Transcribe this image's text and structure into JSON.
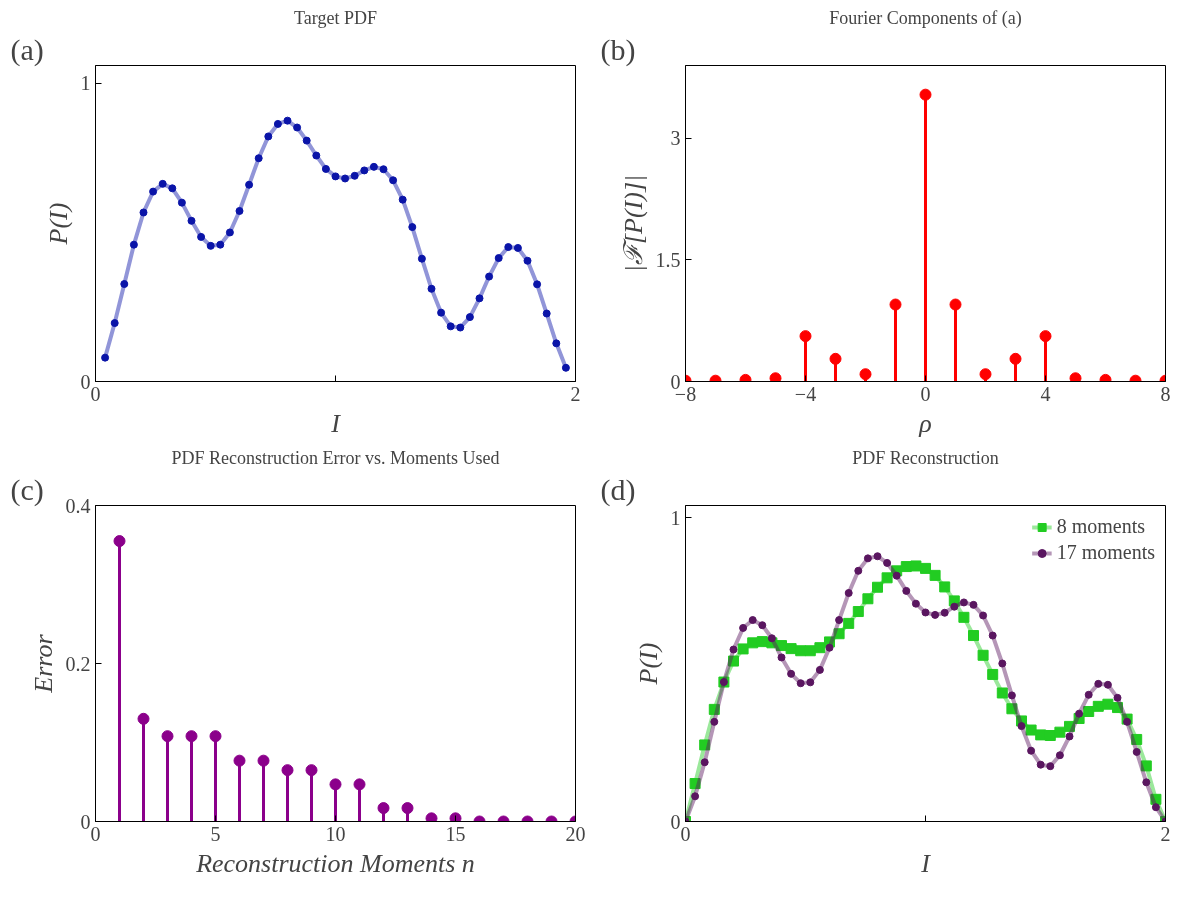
{
  "chart_data": [
    {
      "type": "line",
      "title": "Target PDF",
      "xlabel": "I",
      "ylabel": "P(I)",
      "annotations": [
        "(a)"
      ],
      "marker": "circle",
      "xlim": [
        0,
        2
      ],
      "ylim": [
        0,
        1.06
      ],
      "xticks": [
        0,
        {
          "value": 1,
          "label": null
        },
        2
      ],
      "yticks": [
        0,
        1
      ],
      "grid": false,
      "legend": false,
      "x": [
        0.04,
        0.08,
        0.12,
        0.16,
        0.2,
        0.24,
        0.28,
        0.32,
        0.36,
        0.4,
        0.44,
        0.48,
        0.52,
        0.56,
        0.6,
        0.64,
        0.68,
        0.72,
        0.76,
        0.8,
        0.84,
        0.88,
        0.92,
        0.96,
        1.0,
        1.04,
        1.08,
        1.12,
        1.16,
        1.2,
        1.24,
        1.28,
        1.32,
        1.36,
        1.4,
        1.44,
        1.48,
        1.52,
        1.56,
        1.6,
        1.64,
        1.68,
        1.72,
        1.76,
        1.8,
        1.84,
        1.88,
        1.92,
        1.96
      ],
      "series": [
        {
          "color": "#0a14a8",
          "values": [
            0.08,
            0.196,
            0.327,
            0.459,
            0.567,
            0.637,
            0.663,
            0.648,
            0.6,
            0.539,
            0.485,
            0.455,
            0.459,
            0.5,
            0.572,
            0.66,
            0.749,
            0.822,
            0.864,
            0.875,
            0.852,
            0.808,
            0.758,
            0.713,
            0.688,
            0.681,
            0.69,
            0.708,
            0.72,
            0.712,
            0.675,
            0.61,
            0.518,
            0.412,
            0.311,
            0.231,
            0.185,
            0.181,
            0.216,
            0.279,
            0.352,
            0.414,
            0.451,
            0.448,
            0.405,
            0.326,
            0.228,
            0.128,
            0.046
          ]
        }
      ]
    },
    {
      "type": "lollipop",
      "title": "Fourier Components of (a)",
      "xlabel": "ρ",
      "ylabel": "|ℱ[P(I)]|",
      "annotations": [
        "(b)"
      ],
      "xlim": [
        -8,
        8
      ],
      "ylim": [
        0,
        3.9
      ],
      "xticks": [
        -8,
        -4,
        0,
        4,
        8
      ],
      "yticks": [
        0,
        1.5,
        3
      ],
      "grid": false,
      "legend": false,
      "x": [
        -8,
        -7,
        -6,
        -5,
        -4,
        -3,
        -2,
        -1,
        0,
        1,
        2,
        3,
        4,
        5,
        6,
        7,
        8
      ],
      "series": [
        {
          "color": "#ff0000",
          "values": [
            0.01,
            0.01,
            0.02,
            0.04,
            0.56,
            0.28,
            0.09,
            0.95,
            3.54,
            0.95,
            0.09,
            0.28,
            0.56,
            0.04,
            0.02,
            0.01,
            0.01
          ]
        }
      ]
    },
    {
      "type": "lollipop",
      "title": "PDF Reconstruction Error vs. Moments Used",
      "xlabel": "Reconstruction Moments n",
      "ylabel": "Error",
      "annotations": [
        "(c)"
      ],
      "xlim": [
        0,
        20
      ],
      "ylim": [
        0,
        0.4
      ],
      "xticks": [
        0,
        5,
        10,
        15,
        20
      ],
      "yticks": [
        0,
        0.2,
        0.4
      ],
      "grid": false,
      "legend": false,
      "x": [
        1,
        2,
        3,
        4,
        5,
        6,
        7,
        8,
        9,
        10,
        11,
        12,
        13,
        14,
        15,
        16,
        17,
        18,
        19,
        20
      ],
      "series": [
        {
          "color": "#8b008b",
          "values": [
            0.355,
            0.13,
            0.108,
            0.108,
            0.108,
            0.077,
            0.077,
            0.065,
            0.065,
            0.047,
            0.047,
            0.017,
            0.017,
            0.004,
            0.004,
            0,
            0,
            0,
            0,
            0
          ]
        }
      ]
    },
    {
      "type": "line",
      "title": "PDF Reconstruction",
      "xlabel": "I",
      "ylabel": "P(I)",
      "annotations": [
        "(d)"
      ],
      "xlim": [
        0,
        2
      ],
      "ylim": [
        0,
        1.04
      ],
      "xticks": [
        0,
        {
          "value": 1,
          "label": null
        },
        2
      ],
      "yticks": [
        0,
        1
      ],
      "grid": false,
      "legend": "top right",
      "x": [
        0,
        0.04,
        0.08,
        0.12,
        0.16,
        0.2,
        0.24,
        0.28,
        0.32,
        0.36,
        0.4,
        0.44,
        0.48,
        0.52,
        0.56,
        0.6,
        0.64,
        0.68,
        0.72,
        0.76,
        0.8,
        0.84,
        0.88,
        0.92,
        0.96,
        1.0,
        1.04,
        1.08,
        1.12,
        1.16,
        1.2,
        1.24,
        1.28,
        1.32,
        1.36,
        1.4,
        1.44,
        1.48,
        1.52,
        1.56,
        1.6,
        1.64,
        1.68,
        1.72,
        1.76,
        1.8,
        1.84,
        1.88,
        1.92,
        1.96,
        2.0
      ],
      "series": [
        {
          "name": "8 moments",
          "color": "#22cc22",
          "marker": "square",
          "values": [
            0,
            0.125,
            0.252,
            0.369,
            0.459,
            0.528,
            0.568,
            0.588,
            0.592,
            0.588,
            0.579,
            0.569,
            0.562,
            0.562,
            0.572,
            0.591,
            0.618,
            0.652,
            0.691,
            0.733,
            0.771,
            0.802,
            0.825,
            0.839,
            0.841,
            0.833,
            0.81,
            0.772,
            0.726,
            0.672,
            0.612,
            0.547,
            0.484,
            0.423,
            0.371,
            0.331,
            0.301,
            0.285,
            0.283,
            0.294,
            0.313,
            0.339,
            0.362,
            0.379,
            0.386,
            0.375,
            0.337,
            0.27,
            0.183,
            0.073,
            0
          ]
        },
        {
          "name": "17 moments",
          "color": "#5a1660",
          "marker": "circle",
          "values": [
            0,
            0.083,
            0.195,
            0.328,
            0.459,
            0.566,
            0.637,
            0.663,
            0.646,
            0.603,
            0.54,
            0.486,
            0.455,
            0.458,
            0.499,
            0.572,
            0.663,
            0.752,
            0.825,
            0.866,
            0.873,
            0.851,
            0.809,
            0.759,
            0.717,
            0.688,
            0.68,
            0.687,
            0.707,
            0.721,
            0.713,
            0.678,
            0.612,
            0.52,
            0.415,
            0.314,
            0.233,
            0.187,
            0.182,
            0.218,
            0.28,
            0.355,
            0.417,
            0.453,
            0.45,
            0.407,
            0.328,
            0.229,
            0.129,
            0.047,
            0
          ]
        }
      ]
    }
  ]
}
